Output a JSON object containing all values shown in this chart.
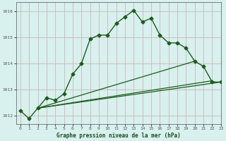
{
  "title": "Graphe pression niveau de la mer (hPa)",
  "bg_color": "#d8f0ee",
  "grid_color": "#c8b8b8",
  "line_color": "#1a5c1a",
  "axis_color": "#555555",
  "xlim": [
    -0.5,
    23
  ],
  "ylim": [
    1011.7,
    1016.35
  ],
  "yticks": [
    1012,
    1013,
    1014,
    1015,
    1016
  ],
  "xticks": [
    0,
    1,
    2,
    3,
    4,
    5,
    6,
    7,
    8,
    9,
    10,
    11,
    12,
    13,
    14,
    15,
    16,
    17,
    18,
    19,
    20,
    21,
    22,
    23
  ],
  "series": [
    {
      "x": [
        0,
        1,
        2,
        3,
        4,
        5,
        6,
        7,
        8,
        9,
        10,
        11,
        12,
        13,
        14,
        15,
        16,
        17,
        18,
        19,
        20,
        21,
        22,
        23
      ],
      "y": [
        1012.2,
        1011.9,
        1012.3,
        1012.7,
        1012.6,
        1012.85,
        1013.6,
        1014.0,
        1014.95,
        1015.1,
        1015.1,
        1015.55,
        1015.8,
        1016.05,
        1015.6,
        1015.75,
        1015.1,
        1014.8,
        1014.8,
        1014.6,
        1014.1,
        1013.9,
        1013.3,
        1013.3
      ],
      "marker": "D",
      "markersize": 2.5,
      "linewidth": 1.0
    },
    {
      "x": [
        2,
        23
      ],
      "y": [
        1012.3,
        1013.3
      ],
      "marker": null,
      "linewidth": 0.9
    },
    {
      "x": [
        2,
        20
      ],
      "y": [
        1012.3,
        1014.1
      ],
      "marker": null,
      "linewidth": 0.9
    },
    {
      "x": [
        2,
        22
      ],
      "y": [
        1012.3,
        1013.35
      ],
      "marker": null,
      "linewidth": 0.9
    }
  ]
}
